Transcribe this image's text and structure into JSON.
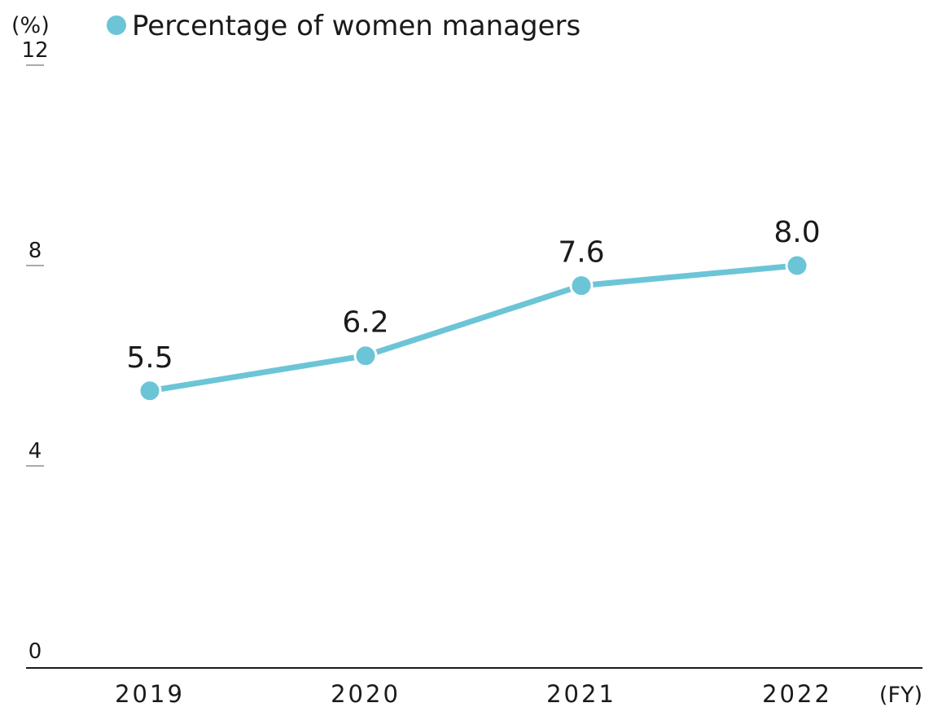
{
  "chart_data": {
    "type": "line",
    "title": "",
    "xlabel": "(FY)",
    "ylabel": "(%)",
    "ylim": [
      0,
      12
    ],
    "y_ticks": [
      "0",
      "4",
      "8",
      "12"
    ],
    "categories": [
      "2019",
      "2020",
      "2021",
      "2022"
    ],
    "series": [
      {
        "name": "Percentage of women managers",
        "values": [
          5.5,
          6.2,
          7.6,
          8.0
        ],
        "labels": [
          "5.5",
          "6.2",
          "7.6",
          "8.0"
        ],
        "color": "#6cc5d6"
      }
    ],
    "legend_position": "top",
    "grid": false
  },
  "colors": {
    "series": "#6cc5d6",
    "axis": "#1a1a1a",
    "tick_mark": "#555555"
  }
}
